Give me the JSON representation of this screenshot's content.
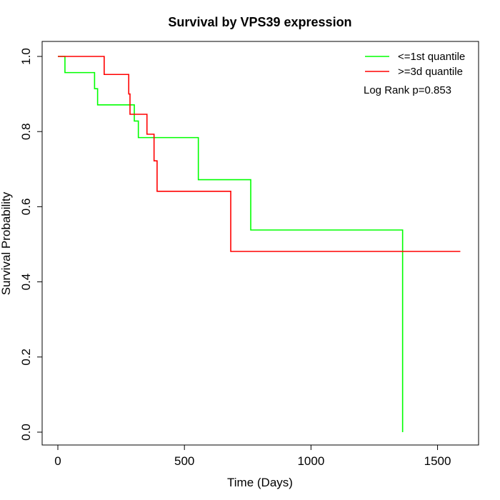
{
  "chart_data": {
    "type": "line",
    "subtype": "kaplan-meier step",
    "title": "Survival by VPS39 expression",
    "xlabel": "Time (Days)",
    "ylabel": "Survival Probability",
    "xlim": [
      0,
      1600
    ],
    "ylim": [
      0,
      1
    ],
    "xticks": [
      0,
      500,
      1000,
      1500
    ],
    "xtick_labels": [
      "0",
      "500",
      "1000",
      "1500"
    ],
    "yticks": [
      0,
      0.2,
      0.4,
      0.6,
      0.8,
      1.0
    ],
    "ytick_labels": [
      "0.0",
      "0.2",
      "0.4",
      "0.6",
      "0.8",
      "1.0"
    ],
    "grid": false,
    "legend_position": "top-right",
    "annotation": "Log Rank p=0.853",
    "series": [
      {
        "name": "<=1st quantile",
        "color": "#00ff00",
        "steps": [
          [
            0,
            1.0
          ],
          [
            28,
            0.957
          ],
          [
            145,
            0.914
          ],
          [
            157,
            0.871
          ],
          [
            302,
            0.828
          ],
          [
            318,
            0.784
          ],
          [
            555,
            0.672
          ],
          [
            762,
            0.538
          ],
          [
            1362,
            0.0
          ]
        ]
      },
      {
        "name": ">=3d quantile",
        "color": "#ff0000",
        "steps": [
          [
            0,
            1.0
          ],
          [
            183,
            0.952
          ],
          [
            280,
            0.9
          ],
          [
            285,
            0.846
          ],
          [
            352,
            0.793
          ],
          [
            380,
            0.722
          ],
          [
            392,
            0.641
          ],
          [
            683,
            0.481
          ],
          [
            1590,
            0.481
          ]
        ]
      }
    ]
  }
}
